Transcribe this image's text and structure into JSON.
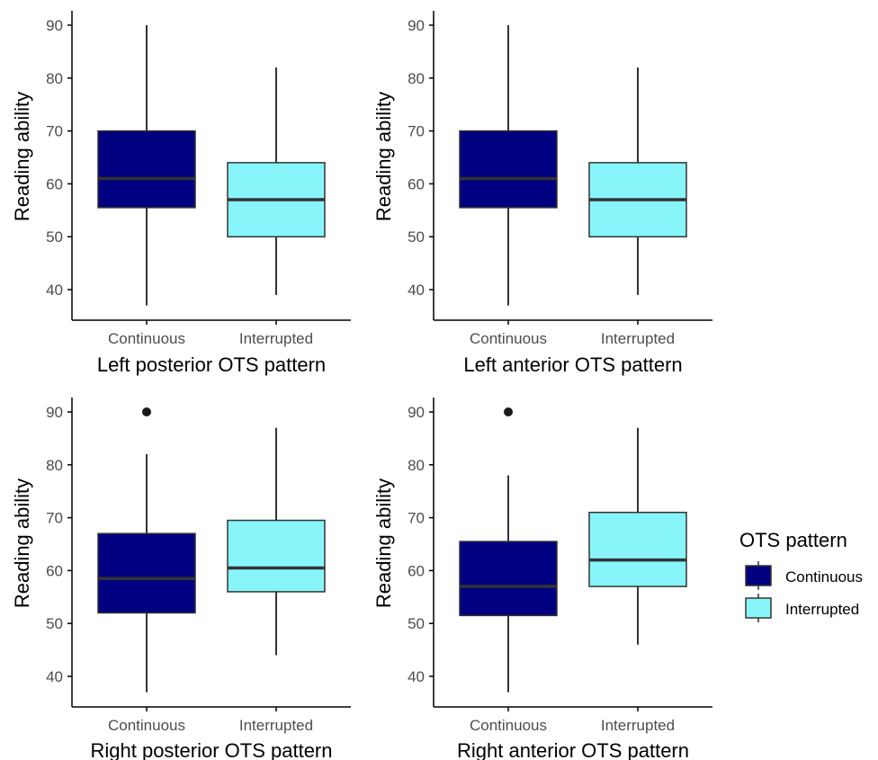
{
  "chart_data": [
    {
      "type": "box",
      "xlabel": "Left posterior OTS pattern",
      "ylabel": "Reading ability",
      "ylim": [
        35,
        93
      ],
      "yticks": [
        40,
        50,
        60,
        70,
        80,
        90
      ],
      "categories": [
        "Continuous",
        "Interrupted"
      ],
      "boxes": [
        {
          "category": "Continuous",
          "min": 37,
          "q1": 55.5,
          "median": 61,
          "q3": 70,
          "max": 90,
          "outliers": []
        },
        {
          "category": "Interrupted",
          "min": 39,
          "q1": 50,
          "median": 57,
          "q3": 64,
          "max": 82,
          "outliers": []
        }
      ],
      "grid": false
    },
    {
      "type": "box",
      "xlabel": "Left anterior OTS pattern",
      "ylabel": "Reading ability",
      "ylim": [
        35,
        93
      ],
      "yticks": [
        40,
        50,
        60,
        70,
        80,
        90
      ],
      "categories": [
        "Continuous",
        "Interrupted"
      ],
      "boxes": [
        {
          "category": "Continuous",
          "min": 37,
          "q1": 55.5,
          "median": 61,
          "q3": 70,
          "max": 90,
          "outliers": []
        },
        {
          "category": "Interrupted",
          "min": 39,
          "q1": 50,
          "median": 57,
          "q3": 64,
          "max": 82,
          "outliers": []
        }
      ],
      "grid": false
    },
    {
      "type": "box",
      "xlabel": "Right posterior OTS pattern",
      "ylabel": "Reading ability",
      "ylim": [
        35,
        93
      ],
      "yticks": [
        40,
        50,
        60,
        70,
        80,
        90
      ],
      "categories": [
        "Continuous",
        "Interrupted"
      ],
      "boxes": [
        {
          "category": "Continuous",
          "min": 37,
          "q1": 52,
          "median": 58.5,
          "q3": 67,
          "max": 82,
          "outliers": [
            90
          ]
        },
        {
          "category": "Interrupted",
          "min": 44,
          "q1": 56,
          "median": 60.5,
          "q3": 69.5,
          "max": 87,
          "outliers": []
        }
      ],
      "grid": false
    },
    {
      "type": "box",
      "xlabel": "Right anterior OTS pattern",
      "ylabel": "Reading ability",
      "ylim": [
        35,
        93
      ],
      "yticks": [
        40,
        50,
        60,
        70,
        80,
        90
      ],
      "categories": [
        "Continuous",
        "Interrupted"
      ],
      "boxes": [
        {
          "category": "Continuous",
          "min": 37,
          "q1": 51.5,
          "median": 57,
          "q3": 65.5,
          "max": 78,
          "outliers": [
            90
          ]
        },
        {
          "category": "Interrupted",
          "min": 46,
          "q1": 57,
          "median": 62,
          "q3": 71,
          "max": 87,
          "outliers": []
        }
      ],
      "grid": false
    }
  ],
  "legend": {
    "title": "OTS pattern",
    "position": "right",
    "items": [
      {
        "label": "Continuous",
        "color": "#000080"
      },
      {
        "label": "Interrupted",
        "color": "#87f5f9"
      }
    ]
  },
  "colors": {
    "Continuous": "#000080",
    "Interrupted": "#87f5f9",
    "median_line": "#333333",
    "whisker": "#333333",
    "axis": "#000000"
  }
}
